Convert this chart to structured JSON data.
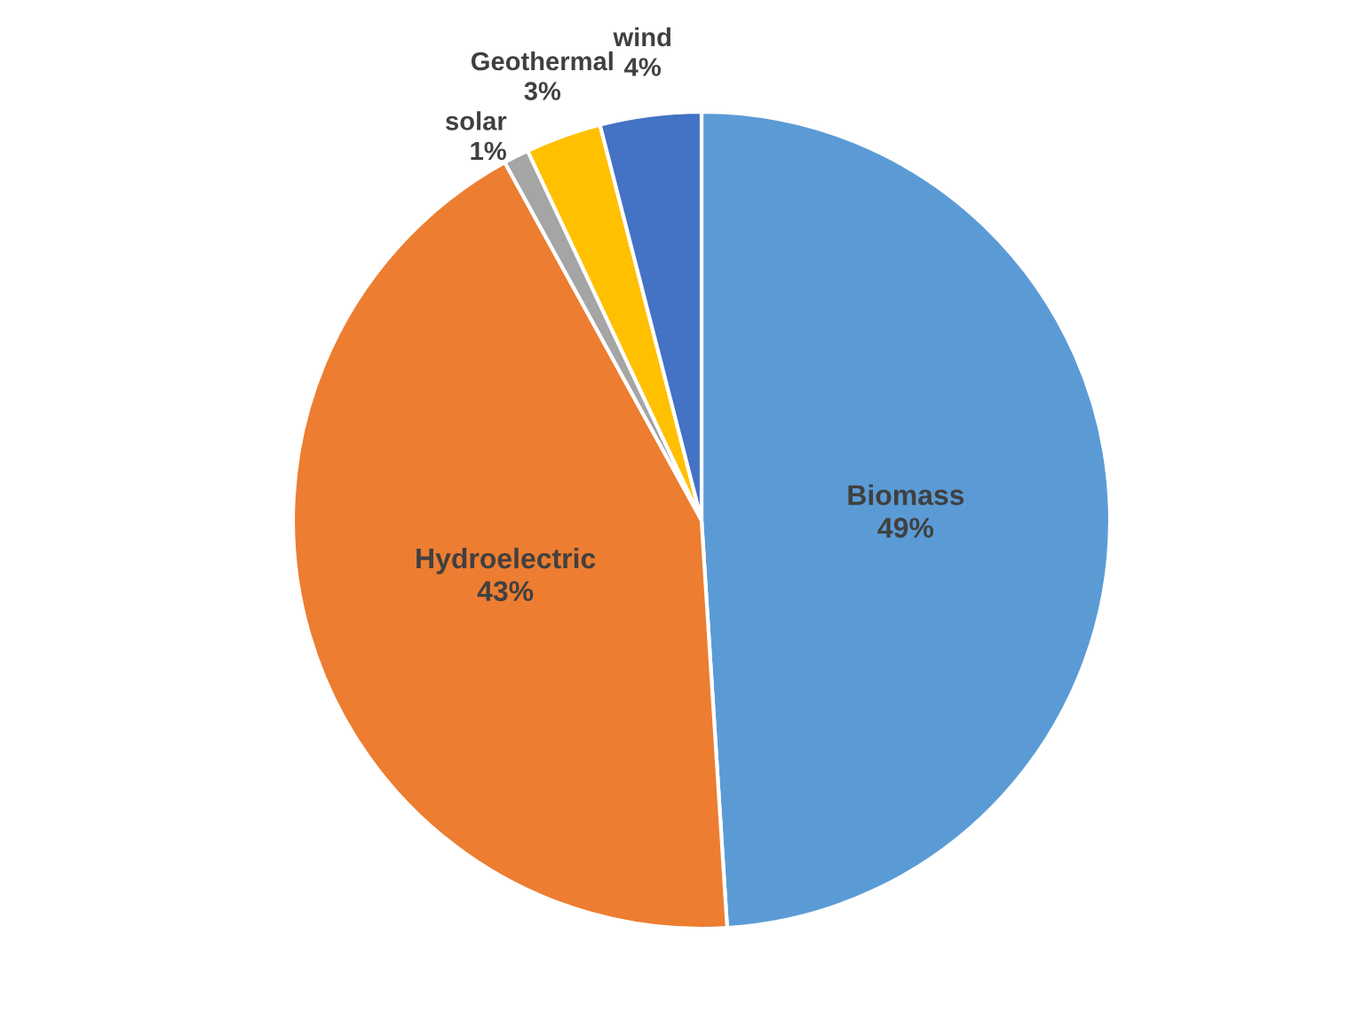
{
  "chart_data": {
    "type": "pie",
    "categories": [
      "Biomass",
      "Hydroelectric",
      "solar",
      "Geothermal",
      "wind"
    ],
    "values": [
      49,
      43,
      1,
      3,
      4
    ],
    "value_labels": [
      "49%",
      "43%",
      "1%",
      "3%",
      "4%"
    ],
    "colors": [
      "#5b9bd5",
      "#ed7d31",
      "#a5a5a5",
      "#ffc000",
      "#4472c4"
    ]
  }
}
